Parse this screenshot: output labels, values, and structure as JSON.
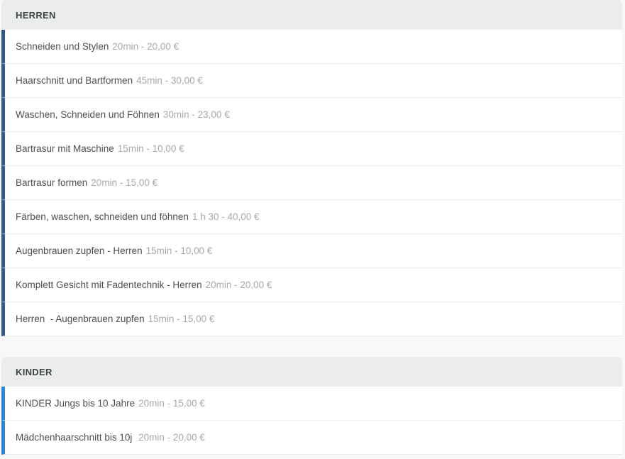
{
  "page": {
    "background_color": "#f7f8f8",
    "header_bg_color": "#ebedec",
    "header_text_color": "#3c4641",
    "service_name_color": "#4b4f52",
    "service_meta_color": "#a4a9ac"
  },
  "sections": [
    {
      "title": "HERREN",
      "accent_color": "#31598a",
      "services": [
        {
          "name": "Schneiden und Stylen",
          "duration": "20min",
          "price": "20,00 €"
        },
        {
          "name": "Haarschnitt und Bartformen",
          "duration": "45min",
          "price": "30,00 €"
        },
        {
          "name": "Waschen, Schneiden und Föhnen",
          "duration": "30min",
          "price": "23,00 €"
        },
        {
          "name": "Bartrasur mit Maschine",
          "duration": "15min",
          "price": "10,00 €"
        },
        {
          "name": "Bartrasur formen",
          "duration": "20min",
          "price": "15,00 €"
        },
        {
          "name": "Färben, waschen, schneiden und föhnen",
          "duration": "1 h 30",
          "price": "40,00 €"
        },
        {
          "name": "Augenbrauen zupfen - Herren",
          "duration": "15min",
          "price": "10,00 €"
        },
        {
          "name": "Komplett Gesicht mit Fadentechnik - Herren",
          "duration": "20min",
          "price": "20,00 €"
        },
        {
          "name": "Herren  - Augenbrauen zupfen",
          "duration": "15min",
          "price": "15,00 €"
        }
      ]
    },
    {
      "title": "KINDER",
      "accent_color": "#2e86d2",
      "services": [
        {
          "name": "KINDER Jungs bis 10 Jahre",
          "duration": "20min",
          "price": "15,00 €"
        },
        {
          "name": "Mädchenhaarschnitt bis 10j ",
          "duration": "20min",
          "price": "20,00 €"
        }
      ]
    }
  ]
}
